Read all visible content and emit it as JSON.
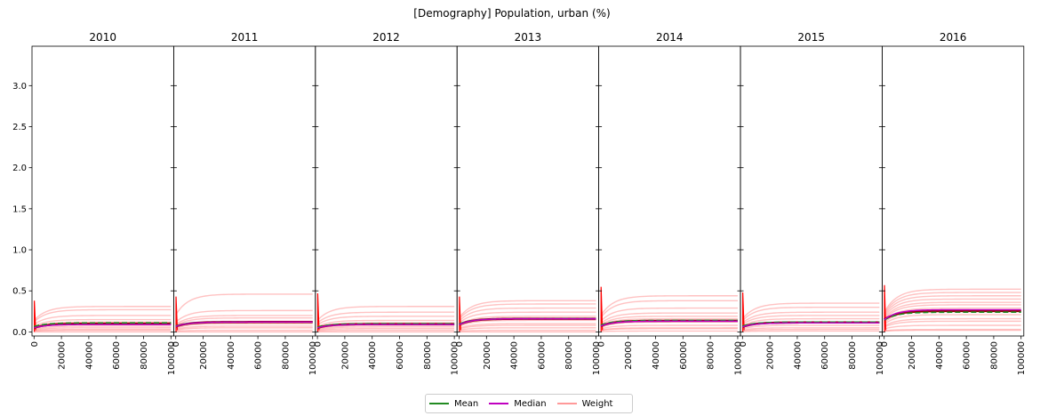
{
  "title": "[Demography] Population, urban (%)",
  "colors": {
    "mean": "#228b22",
    "median": "#c000c0",
    "weight": "#ff9999",
    "spike": "#ff0000",
    "dark_curve": "#8b0000"
  },
  "chart_data": {
    "type": "line",
    "panels": [
      {
        "title": "2010",
        "mean_level": 0.11,
        "median_level": 0.09,
        "weight_levels": [
          0.31,
          0.27,
          0.2,
          0.15,
          0.12,
          0.1,
          0.07,
          0.05,
          0.03,
          0.02,
          0.0
        ],
        "spike": 0.38
      },
      {
        "title": "2011",
        "mean_level": 0.12,
        "median_level": 0.12,
        "weight_levels": [
          0.46,
          0.26,
          0.2,
          0.17,
          0.13,
          0.1,
          0.07,
          0.05,
          0.02,
          0.0
        ],
        "spike": 0.43
      },
      {
        "title": "2012",
        "mean_level": 0.1,
        "median_level": 0.09,
        "weight_levels": [
          0.31,
          0.24,
          0.19,
          0.14,
          0.11,
          0.08,
          0.06,
          0.04,
          0.02,
          0.0
        ],
        "spike": 0.47
      },
      {
        "title": "2013",
        "mean_level": 0.16,
        "median_level": 0.16,
        "weight_levels": [
          0.38,
          0.34,
          0.29,
          0.24,
          0.19,
          0.14,
          0.1,
          0.08,
          0.05,
          0.02,
          0.0
        ],
        "spike": 0.43
      },
      {
        "title": "2014",
        "mean_level": 0.14,
        "median_level": 0.13,
        "weight_levels": [
          0.44,
          0.38,
          0.29,
          0.23,
          0.19,
          0.16,
          0.12,
          0.08,
          0.05,
          0.04,
          0.01
        ],
        "spike": 0.55
      },
      {
        "title": "2015",
        "mean_level": 0.12,
        "median_level": 0.11,
        "weight_levels": [
          0.35,
          0.3,
          0.24,
          0.2,
          0.16,
          0.12,
          0.08,
          0.05,
          0.03,
          0.01
        ],
        "spike": 0.48
      },
      {
        "title": "2016",
        "mean_level": 0.24,
        "median_level": 0.27,
        "weight_levels": [
          0.52,
          0.48,
          0.44,
          0.4,
          0.36,
          0.33,
          0.29,
          0.25,
          0.21,
          0.16,
          0.13,
          0.08,
          0.03,
          0.02
        ],
        "spike": 0.57
      }
    ],
    "x_ticks": [
      "0",
      "20000",
      "40000",
      "60000",
      "80000",
      "100000"
    ],
    "x_tick_values": [
      0,
      20000,
      40000,
      60000,
      80000,
      100000
    ],
    "xlim": [
      -1500,
      102000
    ],
    "y_ticks": [
      "0.0",
      "0.5",
      "1.0",
      "1.5",
      "2.0",
      "2.5",
      "3.0"
    ],
    "y_tick_values": [
      0,
      0.5,
      1.0,
      1.5,
      2.0,
      2.5,
      3.0
    ],
    "ylim": [
      -0.05,
      3.48
    ],
    "legend": [
      "Mean",
      "Median",
      "Weight"
    ],
    "legend_position": "bottom-center",
    "grid": false
  }
}
